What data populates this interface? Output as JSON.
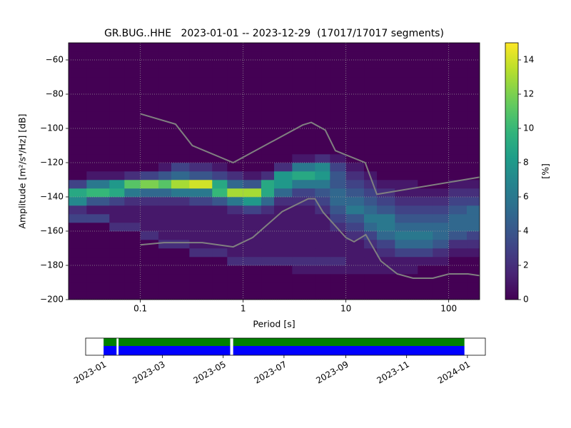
{
  "chart_data": [
    {
      "type": "heatmap",
      "title": "GR.BUG..HHE   2023-01-01 -- 2023-12-29  (17017/17017 segments)",
      "xlabel": "Period [s]",
      "ylabel": "Amplitude [m²/s⁴/Hz] [dB]",
      "xscale": "log",
      "xlim": [
        0.02,
        200
      ],
      "xticks": [
        0.1,
        1,
        10,
        100
      ],
      "ylim": [
        -200,
        -50
      ],
      "yticks": [
        {
          "value": -60,
          "label": "−60"
        },
        {
          "value": -80,
          "label": "−80"
        },
        {
          "value": -100,
          "label": "−100"
        },
        {
          "value": -120,
          "label": "−120"
        },
        {
          "value": -140,
          "label": "−140"
        },
        {
          "value": -160,
          "label": "−160"
        },
        {
          "value": -180,
          "label": "−180"
        },
        {
          "value": -200,
          "label": "−200"
        }
      ],
      "grid": true,
      "colorbar": {
        "label": "[%]",
        "lim": [
          0,
          15
        ],
        "ticks": [
          0,
          2,
          4,
          6,
          8,
          10,
          12,
          14
        ],
        "colormap": "viridis"
      },
      "density": {
        "periods": [
          0.02,
          0.03,
          0.05,
          0.07,
          0.1,
          0.15,
          0.2,
          0.3,
          0.5,
          0.7,
          1,
          1.5,
          2,
          3,
          5,
          7,
          10,
          15,
          20,
          30,
          50,
          70,
          100,
          150,
          200
        ],
        "db_edges": [
          -200,
          -195,
          -190,
          -185,
          -180,
          -175,
          -170,
          -165,
          -160,
          -155,
          -150,
          -145,
          -140,
          -135,
          -130,
          -125,
          -120,
          -115,
          -110,
          -105,
          -100,
          -95,
          -90,
          -85,
          -80,
          -75,
          -70,
          -65,
          -60,
          -55,
          -50
        ],
        "values": [
          [
            0,
            0,
            0,
            0,
            0,
            0,
            0,
            0,
            0,
            3,
            2,
            7,
            9,
            3,
            0,
            0,
            0,
            0,
            0,
            0,
            0,
            0,
            0,
            0,
            0,
            0,
            0,
            0,
            0,
            0
          ],
          [
            0,
            0,
            0,
            0,
            0,
            0,
            0,
            0,
            0,
            3,
            1,
            4,
            10,
            6,
            1,
            0,
            0,
            0,
            0,
            0,
            0,
            0,
            0,
            0,
            0,
            0,
            0,
            0,
            0,
            0
          ],
          [
            0,
            0,
            0,
            0,
            0,
            0,
            0,
            0,
            2,
            1,
            1,
            3,
            9,
            8,
            1,
            0,
            0,
            0,
            0,
            0,
            0,
            0,
            0,
            0,
            0,
            0,
            0,
            0,
            0,
            0
          ],
          [
            0,
            0,
            0,
            0,
            0,
            0,
            0,
            0,
            2,
            1,
            1,
            2,
            6,
            11,
            2,
            0,
            0,
            0,
            0,
            0,
            0,
            0,
            0,
            0,
            0,
            0,
            0,
            0,
            0,
            0
          ],
          [
            0,
            0,
            0,
            0,
            0,
            0,
            0,
            2,
            1,
            1,
            1,
            2,
            5,
            12,
            3,
            0,
            0,
            0,
            0,
            0,
            0,
            0,
            0,
            0,
            0,
            0,
            0,
            0,
            0,
            0
          ],
          [
            0,
            0,
            0,
            0,
            0,
            0,
            2,
            1,
            1,
            1,
            1,
            2,
            5,
            11,
            4,
            1,
            0,
            0,
            0,
            0,
            0,
            0,
            0,
            0,
            0,
            0,
            0,
            0,
            0,
            0
          ],
          [
            0,
            0,
            0,
            0,
            0,
            0,
            2,
            1,
            1,
            1,
            1,
            2,
            6,
            13,
            5,
            3,
            0,
            0,
            0,
            0,
            0,
            0,
            0,
            0,
            0,
            0,
            0,
            0,
            0,
            0
          ],
          [
            0,
            0,
            0,
            0,
            0,
            2,
            1,
            1,
            1,
            1,
            1,
            3,
            6,
            14,
            4,
            2,
            0,
            0,
            0,
            0,
            0,
            0,
            0,
            0,
            0,
            0,
            0,
            0,
            0,
            0
          ],
          [
            0,
            0,
            0,
            0,
            0,
            2,
            1,
            1,
            1,
            1,
            1,
            4,
            10,
            9,
            3,
            1,
            0,
            0,
            0,
            0,
            0,
            0,
            0,
            0,
            0,
            0,
            0,
            0,
            0,
            0
          ],
          [
            0,
            0,
            0,
            0,
            2,
            1,
            1,
            1,
            1,
            1,
            2,
            6,
            13,
            5,
            2,
            0,
            0,
            0,
            0,
            0,
            0,
            0,
            0,
            0,
            0,
            0,
            0,
            0,
            0,
            0
          ],
          [
            0,
            0,
            0,
            0,
            2,
            1,
            1,
            1,
            1,
            1,
            3,
            8,
            13,
            4,
            1,
            0,
            0,
            0,
            0,
            0,
            0,
            0,
            0,
            0,
            0,
            0,
            0,
            0,
            0,
            0
          ],
          [
            0,
            0,
            0,
            0,
            2,
            1,
            1,
            1,
            1,
            1,
            2,
            5,
            9,
            9,
            2,
            0,
            0,
            0,
            0,
            0,
            0,
            0,
            0,
            0,
            0,
            0,
            0,
            0,
            0,
            0
          ],
          [
            0,
            0,
            0,
            0,
            2,
            1,
            1,
            1,
            1,
            1,
            1,
            2,
            5,
            8,
            8,
            2,
            0,
            0,
            0,
            0,
            0,
            0,
            0,
            0,
            0,
            0,
            0,
            0,
            0,
            0
          ],
          [
            0,
            0,
            0,
            1,
            2,
            1,
            1,
            1,
            1,
            1,
            1,
            2,
            3,
            6,
            9,
            6,
            1,
            0,
            0,
            0,
            0,
            0,
            0,
            0,
            0,
            0,
            0,
            0,
            0,
            0
          ],
          [
            0,
            0,
            0,
            1,
            2,
            1,
            1,
            1,
            1,
            1,
            2,
            3,
            4,
            6,
            8,
            7,
            2,
            0,
            0,
            0,
            0,
            0,
            0,
            0,
            0,
            0,
            0,
            0,
            0,
            0
          ],
          [
            0,
            0,
            0,
            1,
            2,
            1,
            1,
            1,
            2,
            3,
            4,
            5,
            5,
            4,
            4,
            3,
            1,
            0,
            0,
            0,
            0,
            0,
            0,
            0,
            0,
            0,
            0,
            0,
            0,
            0
          ],
          [
            0,
            0,
            0,
            1,
            1,
            1,
            1,
            2,
            3,
            4,
            6,
            5,
            4,
            3,
            2,
            1,
            0,
            0,
            0,
            0,
            0,
            0,
            0,
            0,
            0,
            0,
            0,
            0,
            0,
            0
          ],
          [
            0,
            0,
            0,
            1,
            1,
            1,
            2,
            3,
            5,
            6,
            5,
            4,
            3,
            2,
            1,
            0,
            0,
            0,
            0,
            0,
            0,
            0,
            0,
            0,
            0,
            0,
            0,
            0,
            0,
            0
          ],
          [
            0,
            0,
            0,
            1,
            1,
            2,
            3,
            5,
            6,
            6,
            4,
            3,
            2,
            1,
            0,
            0,
            0,
            0,
            0,
            0,
            0,
            0,
            0,
            0,
            0,
            0,
            0,
            0,
            0,
            0
          ],
          [
            0,
            0,
            0,
            1,
            1,
            3,
            5,
            6,
            5,
            4,
            3,
            2,
            1,
            1,
            0,
            0,
            0,
            0,
            0,
            0,
            0,
            0,
            0,
            0,
            0,
            0,
            0,
            0,
            0,
            0
          ],
          [
            0,
            0,
            0,
            0,
            1,
            3,
            5,
            6,
            5,
            4,
            3,
            2,
            1,
            0,
            0,
            0,
            0,
            0,
            0,
            0,
            0,
            0,
            0,
            0,
            0,
            0,
            0,
            0,
            0,
            0
          ],
          [
            0,
            0,
            0,
            0,
            1,
            2,
            4,
            5,
            5,
            4,
            3,
            2,
            1,
            0,
            0,
            0,
            0,
            0,
            0,
            0,
            0,
            0,
            0,
            0,
            0,
            0,
            0,
            0,
            0,
            0
          ],
          [
            0,
            0,
            0,
            0,
            0,
            1,
            2,
            4,
            5,
            5,
            4,
            3,
            2,
            1,
            0,
            0,
            0,
            0,
            0,
            0,
            0,
            0,
            0,
            0,
            0,
            0,
            0,
            0,
            0,
            0
          ],
          [
            0,
            0,
            0,
            0,
            0,
            1,
            2,
            3,
            5,
            5,
            5,
            3,
            2,
            1,
            0,
            0,
            0,
            0,
            0,
            0,
            0,
            0,
            0,
            0,
            0,
            0,
            0,
            0,
            0,
            0
          ]
        ]
      },
      "lines": [
        {
          "color": "#808080",
          "x": [
            0.1,
            0.22,
            0.32,
            0.8,
            3.8,
            4.6,
            6.3,
            7.9,
            15.4,
            20,
            200
          ],
          "y": [
            -91.5,
            -97.5,
            -110,
            -120,
            -98,
            -96.5,
            -101,
            -113,
            -120,
            -138.5,
            -128.5
          ]
        },
        {
          "color": "#808080",
          "x": [
            0.1,
            0.17,
            0.4,
            0.8,
            1.24,
            2.4,
            4.3,
            5,
            6,
            10,
            12,
            15.6,
            21.9,
            31.6,
            45,
            70,
            101,
            154,
            200
          ],
          "y": [
            -168,
            -166.7,
            -166.7,
            -169.2,
            -163.7,
            -148.6,
            -141.1,
            -141.1,
            -149,
            -163.8,
            -166.2,
            -162.1,
            -177.5,
            -185,
            -187.5,
            -187.5,
            -185,
            -185,
            -186
          ]
        }
      ]
    },
    {
      "type": "timeline",
      "xlim": [
        "2022-12-14",
        "2024-01-19"
      ],
      "xticks": [
        {
          "value": "2023-01-01",
          "label": "2023-01"
        },
        {
          "value": "2023-03-01",
          "label": "2023-03"
        },
        {
          "value": "2023-05-01",
          "label": "2023-05"
        },
        {
          "value": "2023-07-01",
          "label": "2023-07"
        },
        {
          "value": "2023-09-01",
          "label": "2023-09"
        },
        {
          "value": "2023-11-01",
          "label": "2023-11"
        },
        {
          "value": "2024-01-01",
          "label": "2024-01"
        }
      ],
      "coverage": [
        {
          "color": "#008000",
          "segments": [
            [
              "2023-01-01",
              "2023-01-14"
            ],
            [
              "2023-01-16",
              "2023-05-08"
            ],
            [
              "2023-05-11",
              "2023-12-29"
            ]
          ]
        },
        {
          "color": "#0000ff",
          "segments": [
            [
              "2023-01-01",
              "2023-01-14"
            ],
            [
              "2023-01-16",
              "2023-05-08"
            ],
            [
              "2023-05-11",
              "2023-12-29"
            ]
          ]
        }
      ]
    }
  ]
}
